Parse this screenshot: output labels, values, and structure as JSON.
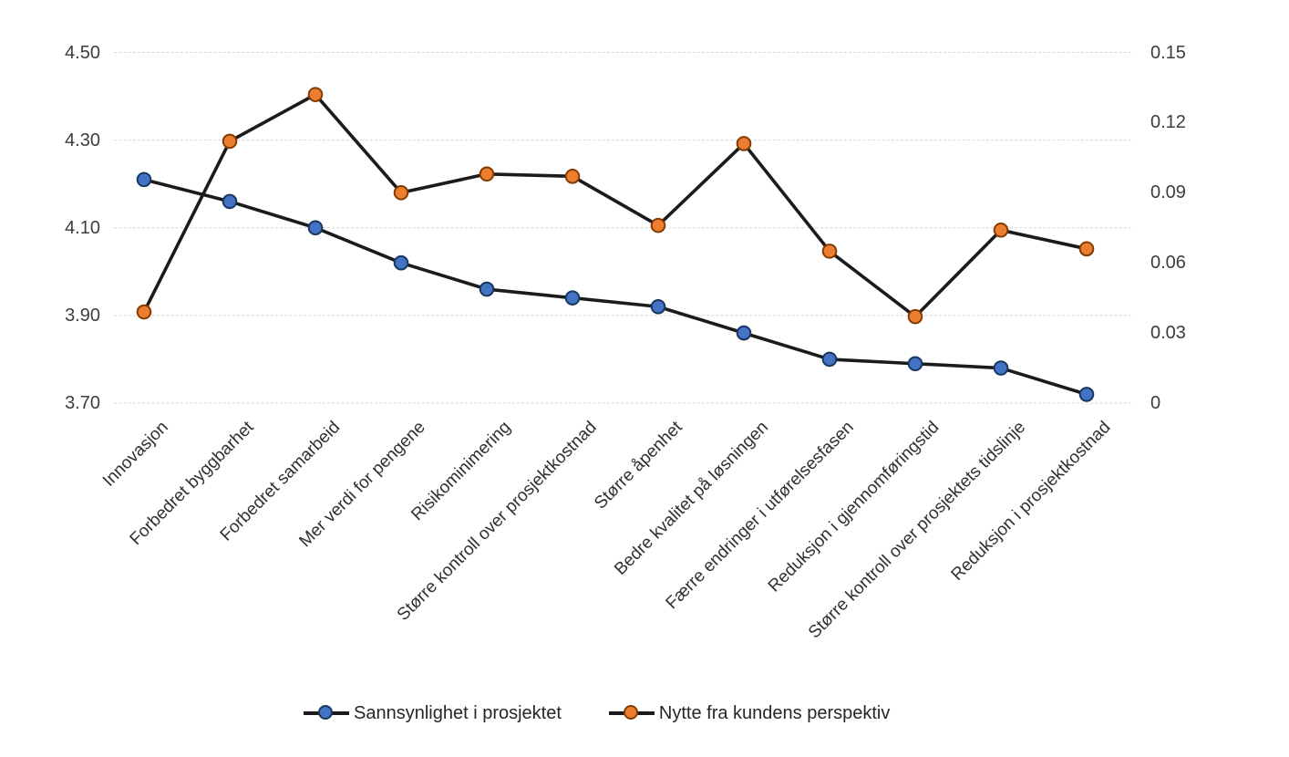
{
  "chart_data": {
    "type": "line",
    "title": "",
    "categories": [
      "Innovasjon",
      "Forbedret byggbarhet",
      "Forbedret samarbeid",
      "Mer verdi for pengene",
      "Risikominimering",
      "Større kontroll over prosjektkostnad",
      "Større åpenhet",
      "Bedre kvalitet på løsningen",
      "Færre endringer i utførelsesfasen",
      "Reduksjon i gjennomføringstid",
      "Større kontroll over prosjektets tidslinje",
      "Reduksjon i prosjektkostnad"
    ],
    "series": [
      {
        "name": "Sannsynlighet i prosjektet",
        "axis": "left",
        "marker_color": "#4472C4",
        "marker_edge": "#17375E",
        "values": [
          4.21,
          4.16,
          4.1,
          4.02,
          3.96,
          3.94,
          3.92,
          3.86,
          3.8,
          3.79,
          3.78,
          3.72
        ]
      },
      {
        "name": "Nytte fra kundens perspektiv",
        "axis": "right",
        "marker_color": "#ED7D31",
        "marker_edge": "#833C00",
        "values": [
          0.039,
          0.112,
          0.132,
          0.09,
          0.098,
          0.097,
          0.076,
          0.111,
          0.065,
          0.037,
          0.074,
          0.066
        ]
      }
    ],
    "line_color": "#1b1b1b",
    "gridline_color": "#d6d6d6",
    "grid": true,
    "legend_position": "bottom",
    "left_axis": {
      "min": 3.7,
      "max": 4.5,
      "ticks": [
        "4.50",
        "4.30",
        "4.10",
        "3.90",
        "3.70"
      ]
    },
    "right_axis": {
      "min": 0,
      "max": 0.15,
      "ticks": [
        "0.15",
        "0.12",
        "0.09",
        "0.06",
        "0.03",
        "0"
      ]
    }
  }
}
